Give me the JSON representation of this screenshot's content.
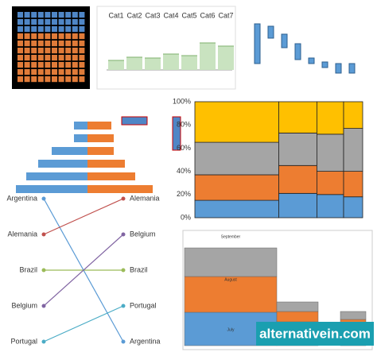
{
  "chart_data": [
    {
      "type": "waffle",
      "values": [
        30,
        70
      ],
      "colors": [
        "#4f86c6",
        "#e07b39"
      ]
    },
    {
      "type": "sparkbar",
      "categories": [
        "Cat1",
        "Cat2",
        "Cat3",
        "Cat4",
        "Cat5",
        "Cat6",
        "Cat7"
      ],
      "values": [
        12,
        16,
        15,
        20,
        18,
        34,
        30
      ],
      "color": "#c9e3c0"
    },
    {
      "type": "waterfall",
      "values": [
        [
          20,
          70
        ],
        [
          52,
          67
        ],
        [
          40,
          57
        ],
        [
          25,
          45
        ],
        [
          20,
          27
        ],
        [
          15,
          22
        ],
        [
          8,
          20
        ],
        [
          8,
          20
        ]
      ],
      "color": "#5b9bd5"
    },
    {
      "type": "marimekko",
      "widths": [
        44,
        20,
        14,
        10
      ],
      "ylim": [
        0,
        100
      ],
      "yticks": [
        {
          "value": 0,
          "label": "0%"
        },
        {
          "value": 20,
          "label": "20%"
        },
        {
          "value": 40,
          "label": "40%"
        },
        {
          "value": 60,
          "label": "60%"
        },
        {
          "value": 80,
          "label": "80%"
        },
        {
          "value": 100,
          "label": "100%"
        }
      ],
      "series": [
        {
          "color": "#5b9bd5",
          "values": [
            15,
            21,
            20,
            18
          ]
        },
        {
          "color": "#ed7d31",
          "values": [
            22,
            24,
            20,
            22
          ]
        },
        {
          "color": "#a5a5a5",
          "values": [
            28,
            28,
            32,
            37
          ]
        },
        {
          "color": "#ffc000",
          "values": [
            35,
            27,
            28,
            23
          ]
        }
      ]
    },
    {
      "type": "tornado",
      "series": [
        {
          "color": "#5b9bd5",
          "values": [
            17,
            17,
            45,
            62,
            77,
            90
          ]
        },
        {
          "color": "#ed7d31",
          "values": [
            30,
            33,
            33,
            47,
            60,
            82
          ]
        }
      ]
    },
    {
      "type": "slope",
      "series": [
        {
          "name": "Argentina",
          "color": "#5b9bd5",
          "values": [
            1,
            5
          ]
        },
        {
          "name": "Alemania",
          "color": "#c0504d",
          "values": [
            2,
            1
          ]
        },
        {
          "name": "Brazil",
          "color": "#9bbb59",
          "values": [
            3,
            3
          ]
        },
        {
          "name": "Belgium",
          "color": "#8064a2",
          "values": [
            4,
            2
          ]
        },
        {
          "name": "Portugal",
          "color": "#4bacc6",
          "values": [
            5,
            4
          ]
        }
      ]
    },
    {
      "type": "stacked",
      "series": [
        {
          "name": "July",
          "color": "#5b9bd5",
          "values": [
            42,
            30,
            25
          ]
        },
        {
          "name": "August",
          "color": "#ed7d31",
          "values": [
            45,
            13,
            8
          ]
        },
        {
          "name": "September",
          "color": "#a5a5a5",
          "values": [
            36,
            12,
            10
          ]
        }
      ]
    }
  ],
  "watermark": "alternativein.com"
}
